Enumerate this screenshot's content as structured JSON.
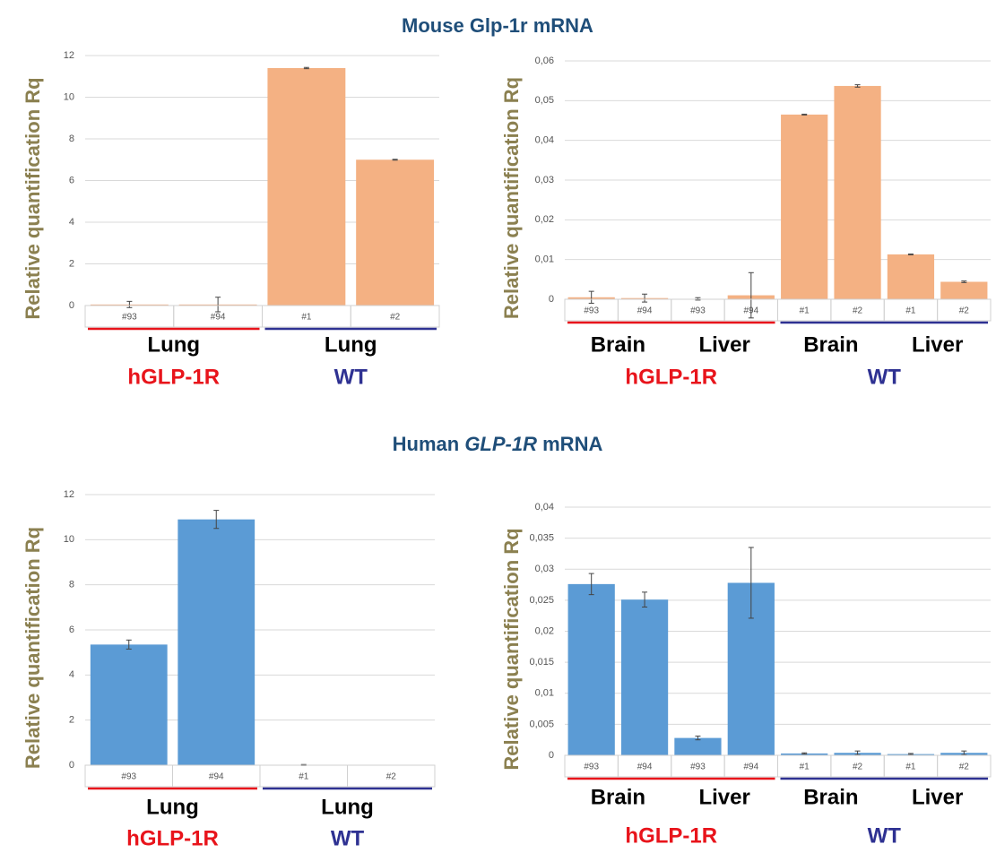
{
  "headings": [
    [
      "Mouse Glp-1r mRNA"
    ],
    [
      "Human",
      "GLP-1R",
      "mRNA"
    ]
  ],
  "chart_data": [
    {
      "type": "bar",
      "ylabel": "Relative quantification Rq",
      "color": "#f4b183",
      "grid": true,
      "ylim": [
        0,
        12
      ],
      "yticks": [
        0,
        2,
        4,
        6,
        8,
        10,
        12
      ],
      "groups": [
        {
          "name": "hGLP-1R",
          "color": "#e8141b",
          "subgroups": [
            {
              "name": "Lung",
              "categories": [
                "#93",
                "#94"
              ],
              "values": [
                0.05,
                0.05
              ],
              "errors": [
                0.15,
                0.35
              ]
            }
          ]
        },
        {
          "name": "WT",
          "color": "#2e3192",
          "subgroups": [
            {
              "name": "Lung",
              "categories": [
                "#1",
                "#2"
              ],
              "values": [
                11.4,
                7.0
              ],
              "errors": [
                0.03,
                0.02
              ]
            }
          ]
        }
      ]
    },
    {
      "type": "bar",
      "ylabel": "Relative quantification Rq",
      "color": "#f4b183",
      "grid": true,
      "ylim": [
        0,
        0.06
      ],
      "yticks": [
        0,
        {
          "value": 0.01,
          "label": "0,01"
        },
        {
          "value": 0.02,
          "label": "0,02"
        },
        {
          "value": 0.03,
          "label": "0,03"
        },
        {
          "value": 0.04,
          "label": "0,04"
        },
        {
          "value": 0.05,
          "label": "0,05"
        },
        {
          "value": 0.06,
          "label": "0,06"
        }
      ],
      "groups": [
        {
          "name": "hGLP-1R",
          "color": "#e8141b",
          "subgroups": [
            {
              "name": "Brain",
              "categories": [
                "#93",
                "#94"
              ],
              "values": [
                0.0005,
                0.0003
              ],
              "errors": [
                0.0015,
                0.001
              ]
            },
            {
              "name": "Liver",
              "categories": [
                "#93",
                "#94"
              ],
              "values": [
                0.0001,
                0.001
              ],
              "errors": [
                0.0003,
                0.0057
              ]
            }
          ]
        },
        {
          "name": "WT",
          "color": "#2e3192",
          "subgroups": [
            {
              "name": "Brain",
              "categories": [
                "#1",
                "#2"
              ],
              "values": [
                0.0465,
                0.0537
              ],
              "errors": [
                0.0001,
                0.0003
              ]
            },
            {
              "name": "Liver",
              "categories": [
                "#1",
                "#2"
              ],
              "values": [
                0.0113,
                0.0044
              ],
              "errors": [
                0.0001,
                0.0002
              ]
            }
          ]
        }
      ]
    },
    {
      "type": "bar",
      "ylabel": "Relative quantification Rq",
      "color": "#5b9bd5",
      "grid": true,
      "ylim": [
        0,
        12
      ],
      "yticks": [
        0,
        2,
        4,
        6,
        8,
        10,
        12
      ],
      "groups": [
        {
          "name": "hGLP-1R",
          "color": "#e8141b",
          "subgroups": [
            {
              "name": "Lung",
              "categories": [
                "#93",
                "#94"
              ],
              "values": [
                5.35,
                10.9
              ],
              "errors": [
                0.2,
                0.4
              ]
            }
          ]
        },
        {
          "name": "WT",
          "color": "#2e3192",
          "subgroups": [
            {
              "name": "Lung",
              "categories": [
                "#1",
                "#2"
              ],
              "values": [
                0.01,
                0
              ],
              "errors": [
                0.02,
                0
              ]
            }
          ]
        }
      ]
    },
    {
      "type": "bar",
      "ylabel": "Relative quantification Rq",
      "color": "#5b9bd5",
      "grid": true,
      "ylim": [
        0,
        0.04
      ],
      "yticks": [
        0,
        {
          "value": 0.005,
          "label": "0,005"
        },
        {
          "value": 0.01,
          "label": "0,01"
        },
        {
          "value": 0.015,
          "label": "0,015"
        },
        {
          "value": 0.02,
          "label": "0,02"
        },
        {
          "value": 0.025,
          "label": "0,025"
        },
        {
          "value": 0.03,
          "label": "0,03"
        },
        {
          "value": 0.035,
          "label": "0,035"
        },
        {
          "value": 0.04,
          "label": "0,04"
        }
      ],
      "groups": [
        {
          "name": "hGLP-1R",
          "color": "#e8141b",
          "subgroups": [
            {
              "name": "Brain",
              "categories": [
                "#93",
                "#94"
              ],
              "values": [
                0.0276,
                0.0251
              ],
              "errors": [
                0.0017,
                0.0012
              ]
            },
            {
              "name": "Liver",
              "categories": [
                "#93",
                "#94"
              ],
              "values": [
                0.0028,
                0.0278
              ],
              "errors": [
                0.0003,
                0.0057
              ]
            }
          ]
        },
        {
          "name": "WT",
          "color": "#2e3192",
          "subgroups": [
            {
              "name": "Brain",
              "categories": [
                "#1",
                "#2"
              ],
              "values": [
                0.0003,
                0.0004
              ],
              "errors": [
                0.0001,
                0.0003
              ]
            },
            {
              "name": "Liver",
              "categories": [
                "#1",
                "#2"
              ],
              "values": [
                0.0002,
                0.0004
              ],
              "errors": [
                0.0001,
                0.0003
              ]
            }
          ]
        }
      ]
    }
  ]
}
